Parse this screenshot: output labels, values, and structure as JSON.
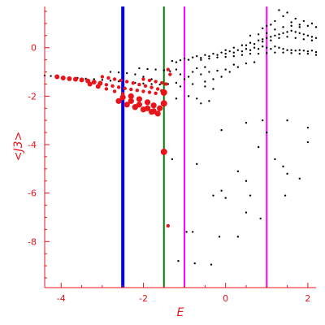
{
  "chart_data": {
    "type": "scatter",
    "title": "",
    "xlabel": "E",
    "ylabel": "<J3>",
    "xlim": [
      -4.4,
      2.2
    ],
    "ylim": [
      -9.9,
      1.7
    ],
    "x_ticks": [
      -4,
      -2,
      0,
      2
    ],
    "y_ticks": [
      0,
      -2,
      -4,
      -6,
      -8
    ],
    "axis_color": "#e8141b",
    "vertical_lines": [
      {
        "x": -2.5,
        "color": "#0000ff"
      },
      {
        "x": -1.5,
        "color": "#008000"
      },
      {
        "x": -1.0,
        "color": "#ff00ff"
      },
      {
        "x": 1.0,
        "color": "#ff00ff"
      }
    ],
    "series": [
      {
        "color": "#000000",
        "points": [
          [
            -4.4,
            -1.15
          ],
          [
            -4.25,
            -1.17
          ],
          [
            -4.1,
            -1.19
          ],
          [
            -3.95,
            -1.21
          ],
          [
            -3.8,
            -1.23
          ],
          [
            -3.6,
            -1.25
          ],
          [
            -3.4,
            -1.28
          ],
          [
            -3.2,
            -1.3
          ],
          [
            -3.0,
            -1.33
          ],
          [
            -2.8,
            -1.36
          ],
          [
            -2.6,
            -1.39
          ],
          [
            -2.4,
            -1.42
          ],
          [
            -2.2,
            -1.45
          ],
          [
            -2.0,
            -1.48
          ],
          [
            -1.8,
            -1.5
          ],
          [
            -1.6,
            -1.52
          ],
          [
            -1.4,
            -1.5
          ],
          [
            -1.2,
            -1.45
          ],
          [
            -2.8,
            -1.0
          ],
          [
            -2.6,
            -1.02
          ],
          [
            -2.4,
            -1.05
          ],
          [
            -2.2,
            -1.1
          ],
          [
            -2.0,
            -1.2
          ],
          [
            -1.8,
            -1.3
          ],
          [
            -2.1,
            -0.85
          ],
          [
            -1.9,
            -0.88
          ],
          [
            -1.7,
            -0.9
          ],
          [
            -1.5,
            -0.93
          ],
          [
            -1.35,
            -0.97
          ],
          [
            -1.3,
            -0.55
          ],
          [
            -1.2,
            -0.6
          ],
          [
            -1.1,
            -0.52
          ],
          [
            -1.0,
            -0.45
          ],
          [
            -0.9,
            -0.5
          ],
          [
            -0.8,
            -0.4
          ],
          [
            -0.7,
            -0.35
          ],
          [
            -0.6,
            -0.42
          ],
          [
            -0.5,
            -0.3
          ],
          [
            -0.4,
            -0.35
          ],
          [
            -0.3,
            -0.25
          ],
          [
            -0.2,
            -0.3
          ],
          [
            -0.1,
            -0.2
          ],
          [
            0.0,
            -0.25
          ],
          [
            0.1,
            -0.15
          ],
          [
            0.2,
            -0.2
          ],
          [
            0.3,
            -0.1
          ],
          [
            0.4,
            -0.15
          ],
          [
            0.5,
            -0.05
          ],
          [
            0.6,
            -0.1
          ],
          [
            0.7,
            0.0
          ],
          [
            0.8,
            -0.05
          ],
          [
            0.9,
            0.05
          ],
          [
            1.0,
            0.0
          ],
          [
            1.1,
            -0.05
          ],
          [
            1.2,
            0.05
          ],
          [
            1.3,
            0.0
          ],
          [
            1.4,
            -0.05
          ],
          [
            1.5,
            -0.1
          ],
          [
            1.6,
            -0.1
          ],
          [
            1.7,
            -0.12
          ],
          [
            1.8,
            -0.1
          ],
          [
            1.9,
            -0.12
          ],
          [
            2.0,
            -0.15
          ],
          [
            2.1,
            -0.12
          ],
          [
            2.2,
            -0.18
          ],
          [
            -0.6,
            -0.5
          ],
          [
            -0.4,
            -0.45
          ],
          [
            -0.2,
            -0.4
          ],
          [
            0.0,
            -0.38
          ],
          [
            0.2,
            -0.35
          ],
          [
            0.4,
            -0.3
          ],
          [
            0.6,
            -0.25
          ],
          [
            0.8,
            -0.25
          ],
          [
            1.0,
            -0.22
          ],
          [
            1.2,
            -0.2
          ],
          [
            1.4,
            -0.2
          ],
          [
            1.6,
            -0.22
          ],
          [
            1.8,
            -0.25
          ],
          [
            2.0,
            -0.25
          ],
          [
            2.2,
            -0.3
          ],
          [
            0.0,
            -0.1
          ],
          [
            0.2,
            0.0
          ],
          [
            0.4,
            0.1
          ],
          [
            0.6,
            0.2
          ],
          [
            0.8,
            0.3
          ],
          [
            0.9,
            0.35
          ],
          [
            1.0,
            0.4
          ],
          [
            1.1,
            0.45
          ],
          [
            1.2,
            0.5
          ],
          [
            1.3,
            0.55
          ],
          [
            1.4,
            0.6
          ],
          [
            1.5,
            0.65
          ],
          [
            1.6,
            0.7
          ],
          [
            1.7,
            0.65
          ],
          [
            1.8,
            0.6
          ],
          [
            1.9,
            0.55
          ],
          [
            2.0,
            0.5
          ],
          [
            2.1,
            0.45
          ],
          [
            2.2,
            0.4
          ],
          [
            0.5,
            0.1
          ],
          [
            0.7,
            0.15
          ],
          [
            0.9,
            0.25
          ],
          [
            1.1,
            0.3
          ],
          [
            1.3,
            0.4
          ],
          [
            1.5,
            0.45
          ],
          [
            1.7,
            0.4
          ],
          [
            1.9,
            0.35
          ],
          [
            2.1,
            0.3
          ],
          [
            0.6,
            0.5
          ],
          [
            0.8,
            0.55
          ],
          [
            1.0,
            0.6
          ],
          [
            1.2,
            0.75
          ],
          [
            1.4,
            0.85
          ],
          [
            1.6,
            0.9
          ],
          [
            1.8,
            0.95
          ],
          [
            2.0,
            0.9
          ],
          [
            2.2,
            0.85
          ],
          [
            1.0,
            0.9
          ],
          [
            1.2,
            1.1
          ],
          [
            1.4,
            1.3
          ],
          [
            1.3,
            1.55
          ],
          [
            1.5,
            1.45
          ],
          [
            1.7,
            1.2
          ],
          [
            1.9,
            1.1
          ],
          [
            2.1,
            1.0
          ],
          [
            1.6,
            1.05
          ],
          [
            1.1,
            0.95
          ],
          [
            0.9,
            0.8
          ],
          [
            1.8,
            0.85
          ],
          [
            -1.2,
            -0.9
          ],
          [
            -1.1,
            -1.1
          ],
          [
            -1.0,
            -1.3
          ],
          [
            -0.9,
            -1.2
          ],
          [
            -0.8,
            -1.0
          ],
          [
            -0.7,
            -0.85
          ],
          [
            -0.6,
            -1.1
          ],
          [
            -0.5,
            -1.4
          ],
          [
            -0.5,
            -0.8
          ],
          [
            -0.4,
            -1.0
          ],
          [
            -0.3,
            -1.3
          ],
          [
            -0.2,
            -0.95
          ],
          [
            -0.1,
            -1.2
          ],
          [
            0.0,
            -0.9
          ],
          [
            0.1,
            -1.0
          ],
          [
            0.2,
            -0.7
          ],
          [
            0.3,
            -0.8
          ],
          [
            0.5,
            -0.65
          ],
          [
            0.7,
            -0.6
          ],
          [
            -1.2,
            -2.1
          ],
          [
            -1.1,
            -1.6
          ],
          [
            -0.9,
            -2.0
          ],
          [
            -0.7,
            -2.1
          ],
          [
            -0.5,
            -1.6
          ],
          [
            -0.4,
            -2.2
          ],
          [
            -0.8,
            -1.5
          ],
          [
            -0.3,
            -1.7
          ],
          [
            -0.6,
            -2.3
          ],
          [
            -1.3,
            -4.6
          ],
          [
            -0.7,
            -4.8
          ],
          [
            -0.95,
            -7.6
          ],
          [
            -1.15,
            -8.8
          ],
          [
            -0.75,
            -8.9
          ],
          [
            -0.35,
            -8.95
          ],
          [
            -0.8,
            -7.6
          ],
          [
            -0.3,
            -6.1
          ],
          [
            -0.1,
            -5.9
          ],
          [
            0.0,
            -6.2
          ],
          [
            0.3,
            -5.1
          ],
          [
            0.5,
            -5.5
          ],
          [
            0.6,
            -6.1
          ],
          [
            0.5,
            -6.8
          ],
          [
            -0.15,
            -7.8
          ],
          [
            0.3,
            -7.8
          ],
          [
            0.8,
            -4.1
          ],
          [
            1.2,
            -4.6
          ],
          [
            1.4,
            -4.9
          ],
          [
            1.5,
            -5.2
          ],
          [
            1.8,
            -5.4
          ],
          [
            2.0,
            -3.9
          ],
          [
            0.5,
            -3.1
          ],
          [
            1.0,
            -3.5
          ],
          [
            1.5,
            -3.0
          ],
          [
            2.0,
            -3.3
          ],
          [
            1.45,
            -6.1
          ],
          [
            0.85,
            -7.05
          ],
          [
            -0.1,
            -3.4
          ],
          [
            0.9,
            -3.0
          ]
        ]
      },
      {
        "color": "#e8141b",
        "points": [
          [
            -4.1,
            -1.2
          ],
          [
            -3.95,
            -1.25
          ],
          [
            -3.8,
            -1.28
          ],
          [
            -3.65,
            -1.3
          ],
          [
            -3.5,
            -1.33
          ],
          [
            -3.35,
            -1.37
          ],
          [
            -3.2,
            -1.42
          ],
          [
            -3.05,
            -1.47
          ],
          [
            -2.9,
            -1.53
          ],
          [
            -2.75,
            -1.58
          ],
          [
            -2.6,
            -1.63
          ],
          [
            -2.45,
            -1.68
          ],
          [
            -2.3,
            -1.72
          ],
          [
            -2.15,
            -1.76
          ],
          [
            -2.0,
            -1.8
          ],
          [
            -1.85,
            -1.84
          ],
          [
            -1.7,
            -1.88
          ],
          [
            -3.0,
            -1.2
          ],
          [
            -2.85,
            -1.25
          ],
          [
            -2.7,
            -1.3
          ],
          [
            -2.55,
            -1.35
          ],
          [
            -2.4,
            -1.4
          ],
          [
            -2.25,
            -1.46
          ],
          [
            -2.1,
            -1.52
          ],
          [
            -1.95,
            -1.58
          ],
          [
            -1.8,
            -1.64
          ],
          [
            -1.65,
            -1.7
          ],
          [
            -1.55,
            -1.78
          ],
          [
            -3.3,
            -1.5
          ],
          [
            -3.1,
            -1.6
          ],
          [
            -2.9,
            -1.7
          ],
          [
            -2.7,
            -1.8
          ],
          [
            -2.5,
            -1.9
          ],
          [
            -2.3,
            -2.0
          ],
          [
            -2.1,
            -2.12
          ],
          [
            -1.9,
            -2.25
          ],
          [
            -1.75,
            -2.38
          ],
          [
            -1.6,
            -2.5
          ],
          [
            -2.5,
            -2.05
          ],
          [
            -2.3,
            -2.2
          ],
          [
            -2.1,
            -2.35
          ],
          [
            -1.9,
            -2.5
          ],
          [
            -1.75,
            -2.62
          ],
          [
            -1.65,
            -2.72
          ],
          [
            -2.6,
            -2.2
          ],
          [
            -2.4,
            -2.35
          ],
          [
            -2.2,
            -2.45
          ],
          [
            -2.0,
            -2.55
          ],
          [
            -1.8,
            -2.65
          ],
          [
            -2.0,
            -1.3
          ],
          [
            -1.85,
            -1.35
          ],
          [
            -1.7,
            -1.4
          ],
          [
            -1.55,
            -1.45
          ],
          [
            -1.45,
            -1.5
          ],
          [
            -1.5,
            -1.85
          ],
          [
            -1.5,
            -2.3
          ],
          [
            -1.5,
            -4.3
          ],
          [
            -1.4,
            -0.9
          ],
          [
            -1.35,
            -1.1
          ],
          [
            -1.4,
            -7.35
          ],
          [
            -2.2,
            -2.45
          ]
        ]
      }
    ]
  }
}
